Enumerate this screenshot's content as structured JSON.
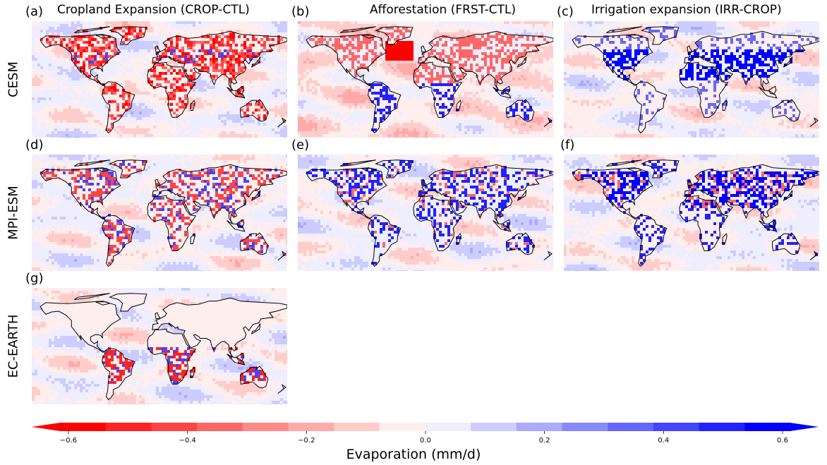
{
  "chart_data": {
    "type": "heatmap",
    "description": "Multi-panel global maps of evaporation difference",
    "column_titles": [
      "Cropland Expansion (CROP-CTL)",
      "Afforestation (FRST-CTL)",
      "Irrigation expansion (IRR-CROP)"
    ],
    "row_labels": [
      "CESM",
      "MPI-ESM",
      "EC-EARTH"
    ],
    "panels": [
      {
        "label": "(a)",
        "model": "CESM",
        "experiment": "Cropland Expansion (CROP-CTL)"
      },
      {
        "label": "(b)",
        "model": "CESM",
        "experiment": "Afforestation (FRST-CTL)"
      },
      {
        "label": "(c)",
        "model": "CESM",
        "experiment": "Irrigation expansion (IRR-CROP)"
      },
      {
        "label": "(d)",
        "model": "MPI-ESM",
        "experiment": "Cropland Expansion (CROP-CTL)"
      },
      {
        "label": "(e)",
        "model": "MPI-ESM",
        "experiment": "Afforestation (FRST-CTL)"
      },
      {
        "label": "(f)",
        "model": "MPI-ESM",
        "experiment": "Irrigation expansion (IRR-CROP)"
      },
      {
        "label": "(g)",
        "model": "EC-EARTH",
        "experiment": "Cropland Expansion (CROP-CTL)"
      }
    ],
    "colorbar": {
      "label": "Evaporation (mm/d)",
      "vmin": -0.6,
      "vmax": 0.6,
      "extend": "both",
      "levels": [
        -0.6,
        -0.525,
        -0.45,
        -0.375,
        -0.3,
        -0.225,
        -0.15,
        -0.075,
        0.0,
        0.075,
        0.15,
        0.225,
        0.3,
        0.375,
        0.45,
        0.525,
        0.6
      ],
      "colors": [
        "#ff0000",
        "#ff2222",
        "#ff4444",
        "#ff6666",
        "#ff8888",
        "#ffaaaa",
        "#ffcccc",
        "#ffeeee",
        "#eeeeff",
        "#ccccff",
        "#aaaaff",
        "#8888ff",
        "#6666ff",
        "#4444ff",
        "#2222ff",
        "#0000ff"
      ],
      "ticks": [
        -0.6,
        -0.4,
        -0.2,
        0.0,
        0.2,
        0.4,
        0.6
      ],
      "tick_labels": [
        "−0.6",
        "−0.4",
        "−0.2",
        "0.0",
        "0.2",
        "0.4",
        "0.6"
      ]
    }
  }
}
